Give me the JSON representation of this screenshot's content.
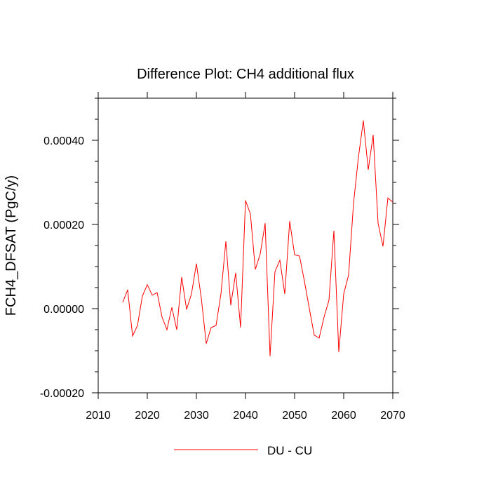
{
  "chart_data": {
    "type": "line",
    "title": "Difference Plot: CH4 additional flux",
    "xlabel": "",
    "ylabel": "FCH4_DFSAT  (PgC/y)",
    "xlim": [
      2010,
      2070
    ],
    "ylim": [
      -0.0002,
      0.0005
    ],
    "x_ticks": [
      {
        "value": 2010,
        "label": "2010"
      },
      {
        "value": 2020,
        "label": "2020"
      },
      {
        "value": 2030,
        "label": "2030"
      },
      {
        "value": 2040,
        "label": "2040"
      },
      {
        "value": 2050,
        "label": "2050"
      },
      {
        "value": 2060,
        "label": "2060"
      },
      {
        "value": 2070,
        "label": "2070"
      }
    ],
    "y_ticks": [
      {
        "value": -0.0002,
        "label": "-0.00020"
      },
      {
        "value": 0.0,
        "label": "0.00000"
      },
      {
        "value": 0.0002,
        "label": "0.00020"
      },
      {
        "value": 0.0004,
        "label": "0.00040"
      }
    ],
    "grid": false,
    "legend_position": "bottom-center",
    "series": [
      {
        "name": "DU - CU",
        "color": "#ff0000",
        "x": [
          2015,
          2016,
          2017,
          2018,
          2019,
          2020,
          2021,
          2022,
          2023,
          2024,
          2025,
          2026,
          2027,
          2028,
          2029,
          2030,
          2031,
          2032,
          2033,
          2034,
          2035,
          2036,
          2037,
          2038,
          2039,
          2040,
          2041,
          2042,
          2043,
          2044,
          2045,
          2046,
          2047,
          2048,
          2049,
          2050,
          2051,
          2052,
          2053,
          2054,
          2055,
          2056,
          2057,
          2058,
          2059,
          2060,
          2061,
          2062,
          2063,
          2064,
          2065,
          2066,
          2067,
          2068,
          2069,
          2070
        ],
        "y": [
          1.5e-05,
          4.5e-05,
          -6.5e-05,
          -4e-05,
          3e-05,
          5.7e-05,
          3.2e-05,
          3.8e-05,
          -2e-05,
          -5e-05,
          3e-06,
          -5e-05,
          7.5e-05,
          -2e-06,
          3.5e-05,
          0.000107,
          2.5e-05,
          -8.3e-05,
          -4.5e-05,
          -4e-05,
          3.5e-05,
          0.00016,
          8e-06,
          8.5e-05,
          -4.5e-05,
          0.000257,
          0.000225,
          9.3e-05,
          0.00013,
          0.000203,
          -0.000113,
          8.8e-05,
          0.000115,
          3.5e-05,
          0.000208,
          0.000128,
          0.000125,
          6.5e-05,
          0.0,
          -6.3e-05,
          -7e-05,
          -2e-05,
          2e-05,
          0.000185,
          -0.000103,
          3.5e-05,
          8e-05,
          0.00025,
          0.00036,
          0.000447,
          0.00033,
          0.000413,
          0.000203,
          0.000148,
          0.000263,
          0.000253
        ]
      }
    ]
  }
}
